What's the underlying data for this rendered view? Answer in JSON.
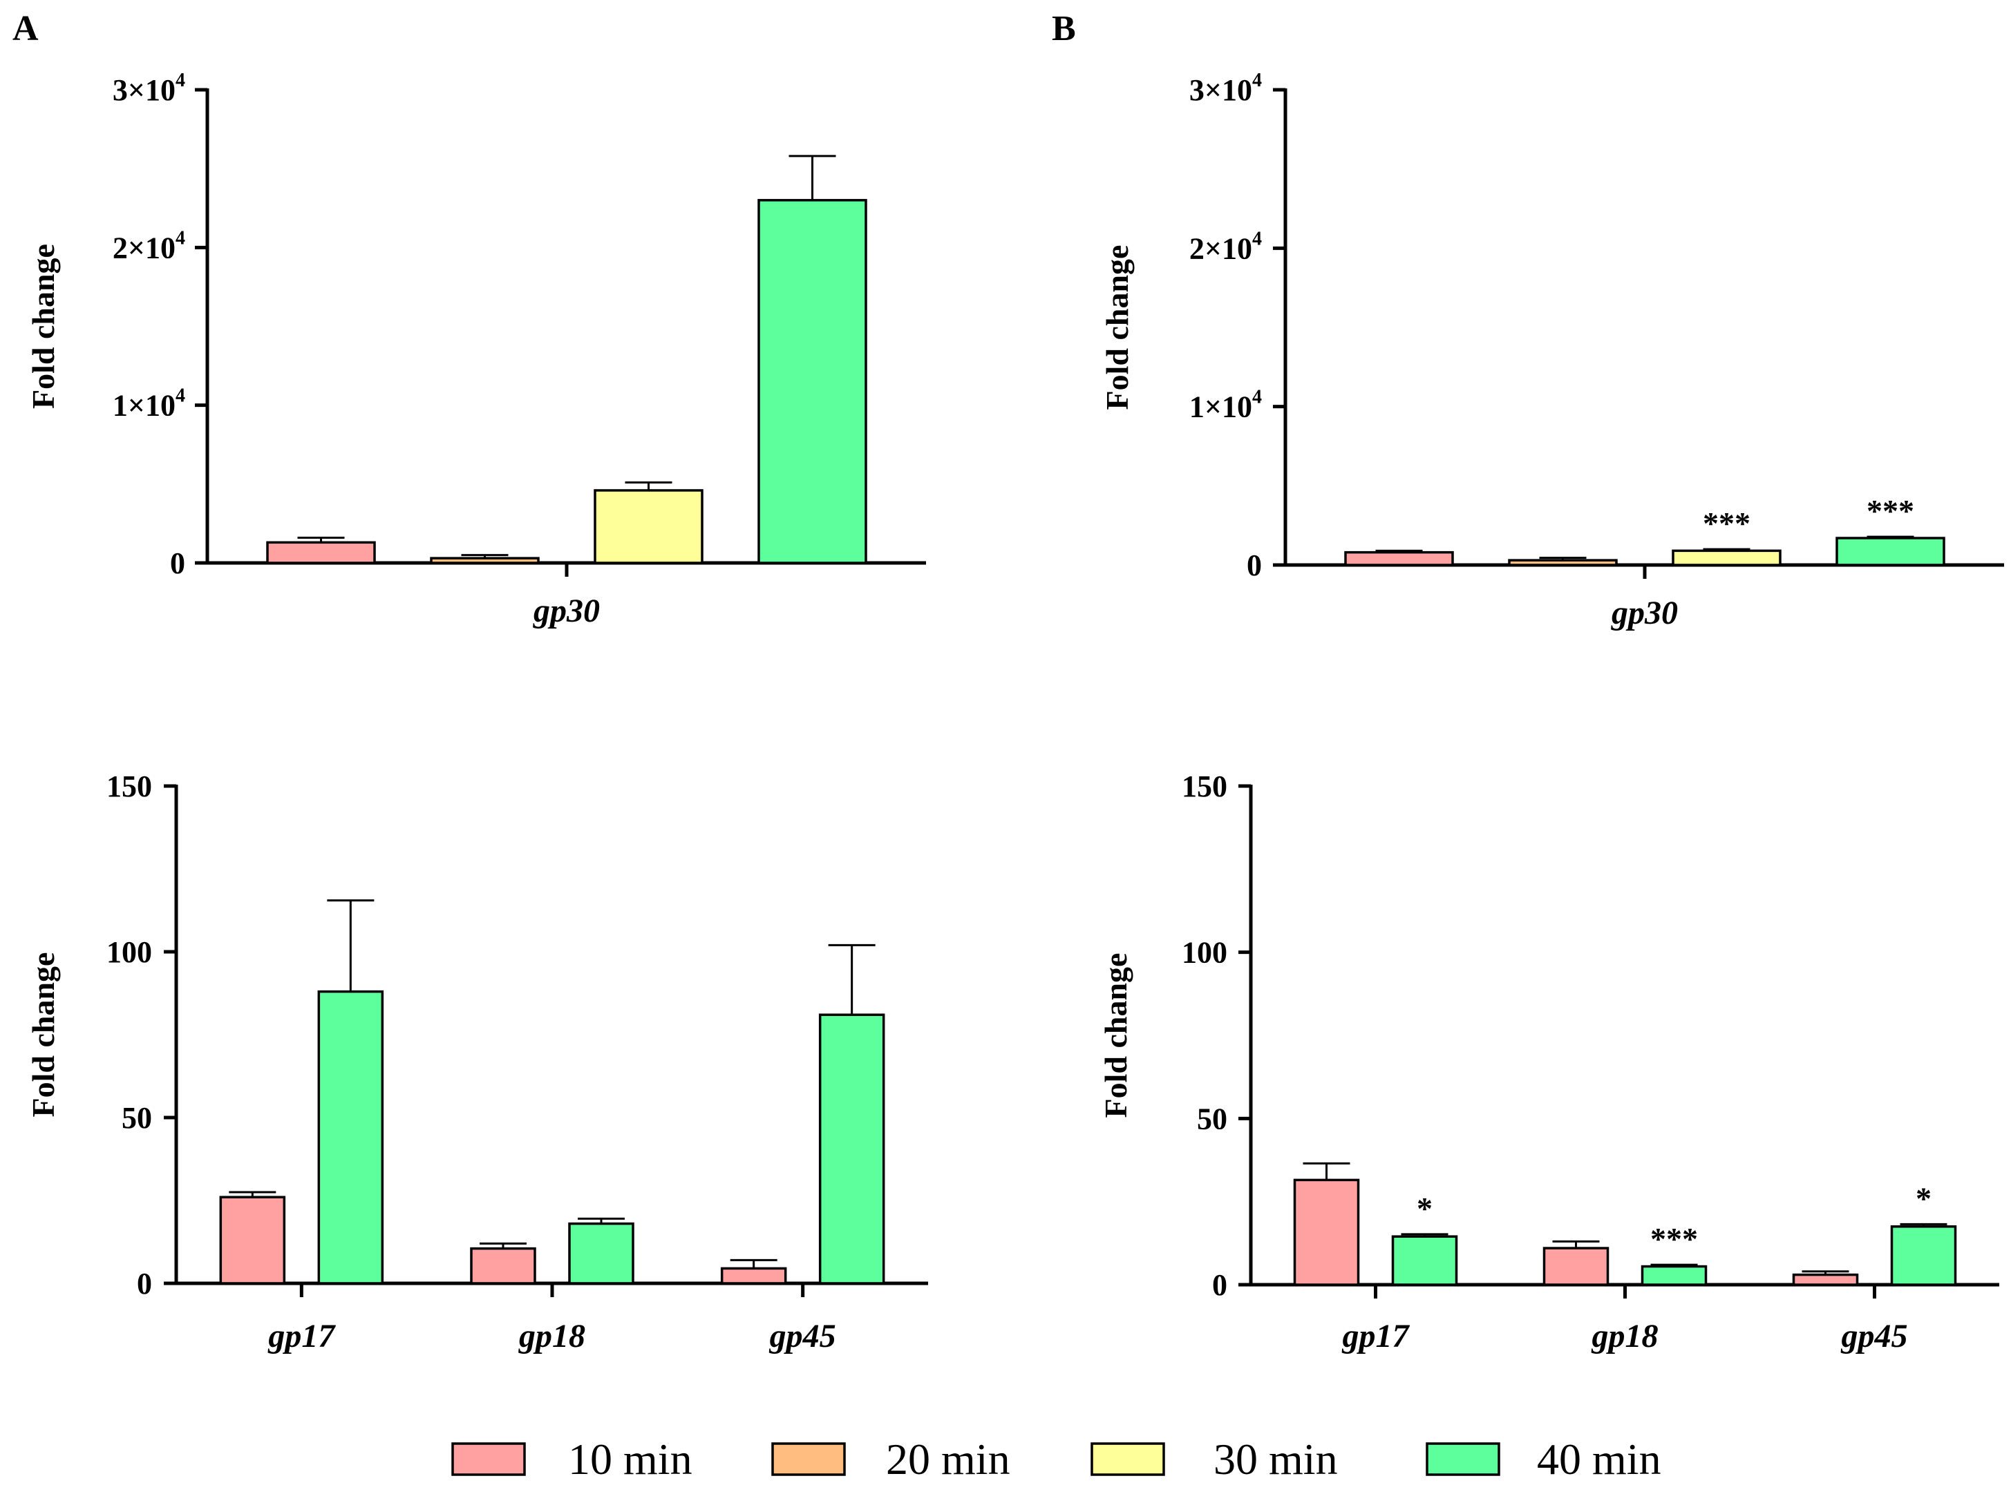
{
  "colors": {
    "10 min": "#ffa1a1",
    "20 min": "#ffbd80",
    "30 min": "#ffff99",
    "40 min": "#5cff9b"
  },
  "legend": [
    "10 min",
    "20 min",
    "30 min",
    "40 min"
  ],
  "chart_data": [
    {
      "panel": "A",
      "type": "bar",
      "ylabel": "Fold change",
      "ylim": [
        0,
        30000
      ],
      "yticks": [
        {
          "value": 0,
          "label": "0"
        },
        {
          "value": 10000,
          "label": "1×10",
          "exp": "4"
        },
        {
          "value": 20000,
          "label": "2×10",
          "exp": "4"
        },
        {
          "value": 30000,
          "label": "3×10",
          "exp": "4"
        }
      ],
      "categories": [
        "gp30"
      ],
      "series": [
        {
          "name": "10 min",
          "values": [
            1300
          ],
          "errors": [
            300
          ],
          "sig": [
            ""
          ]
        },
        {
          "name": "20 min",
          "values": [
            300
          ],
          "errors": [
            200
          ],
          "sig": [
            ""
          ]
        },
        {
          "name": "30 min",
          "values": [
            4600
          ],
          "errors": [
            500
          ],
          "sig": [
            ""
          ]
        },
        {
          "name": "40 min",
          "values": [
            23000
          ],
          "errors": [
            2800
          ],
          "sig": [
            ""
          ]
        }
      ]
    },
    {
      "panel": "B",
      "type": "bar",
      "ylabel": "Fold change",
      "ylim": [
        0,
        30000
      ],
      "yticks": [
        {
          "value": 0,
          "label": "0"
        },
        {
          "value": 10000,
          "label": "1×10",
          "exp": "4"
        },
        {
          "value": 20000,
          "label": "2×10",
          "exp": "4"
        },
        {
          "value": 30000,
          "label": "3×10",
          "exp": "4"
        }
      ],
      "categories": [
        "gp30"
      ],
      "series": [
        {
          "name": "10 min",
          "values": [
            800
          ],
          "errors": [
            100
          ],
          "sig": [
            ""
          ]
        },
        {
          "name": "20 min",
          "values": [
            300
          ],
          "errors": [
            150
          ],
          "sig": [
            ""
          ]
        },
        {
          "name": "30 min",
          "values": [
            900
          ],
          "errors": [
            100
          ],
          "sig": [
            "***"
          ]
        },
        {
          "name": "40 min",
          "values": [
            1700
          ],
          "errors": [
            80
          ],
          "sig": [
            "***"
          ]
        }
      ]
    },
    {
      "panel": "",
      "type": "bar",
      "ylabel": "Fold change",
      "ylim": [
        0,
        150
      ],
      "yticks": [
        {
          "value": 0,
          "label": "0"
        },
        {
          "value": 50,
          "label": "50"
        },
        {
          "value": 100,
          "label": "100"
        },
        {
          "value": 150,
          "label": "150"
        }
      ],
      "categories": [
        "gp17",
        "gp18",
        "gp45"
      ],
      "series": [
        {
          "name": "10 min",
          "values": [
            26,
            10.5,
            4.5
          ],
          "errors": [
            1.5,
            1.5,
            2.5
          ],
          "sig": [
            "",
            "",
            ""
          ]
        },
        {
          "name": "40 min",
          "values": [
            88,
            18,
            81
          ],
          "errors": [
            27.5,
            1.5,
            21
          ],
          "sig": [
            "",
            "",
            ""
          ]
        }
      ]
    },
    {
      "panel": "",
      "type": "bar",
      "ylabel": "Fold change",
      "ylim": [
        0,
        150
      ],
      "yticks": [
        {
          "value": 0,
          "label": "0"
        },
        {
          "value": 50,
          "label": "50"
        },
        {
          "value": 100,
          "label": "100"
        },
        {
          "value": 150,
          "label": "150"
        }
      ],
      "categories": [
        "gp17",
        "gp18",
        "gp45"
      ],
      "series": [
        {
          "name": "10 min",
          "values": [
            31.5,
            11,
            3
          ],
          "errors": [
            5,
            2,
            1
          ],
          "sig": [
            "",
            "",
            ""
          ]
        },
        {
          "name": "40 min",
          "values": [
            14.5,
            5.5,
            17.5
          ],
          "errors": [
            0.7,
            0.5,
            0.7
          ],
          "sig": [
            "*",
            "***",
            "*"
          ]
        }
      ]
    }
  ]
}
